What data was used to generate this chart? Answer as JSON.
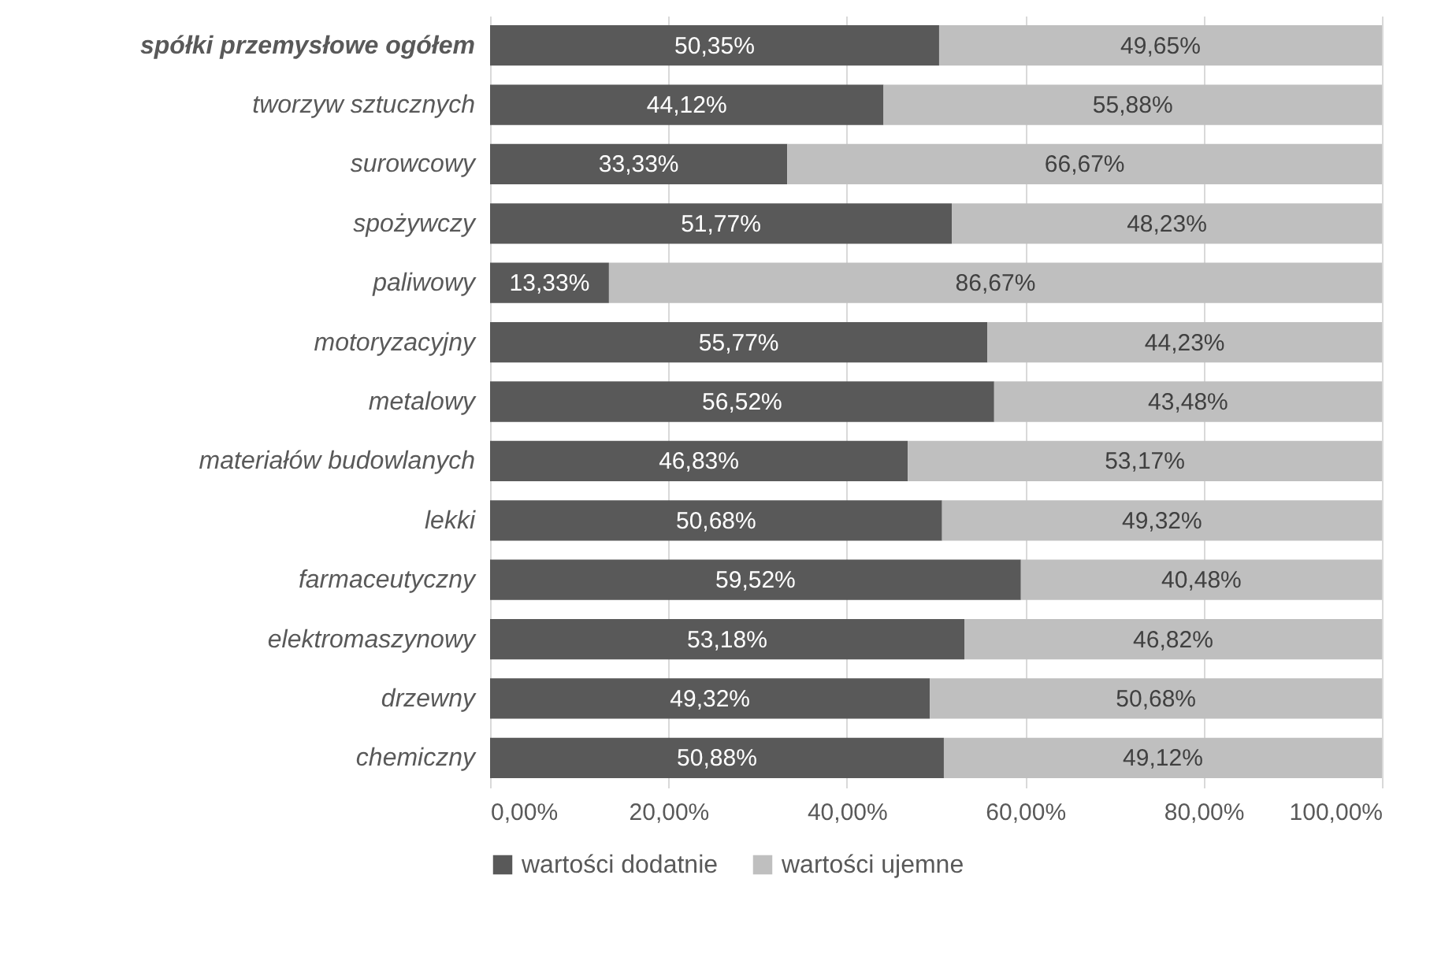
{
  "chart_data": {
    "type": "bar",
    "orientation": "horizontal",
    "stacked": true,
    "categories": [
      "spółki przemysłowe ogółem",
      "tworzyw sztucznych",
      "surowcowy",
      "spożywczy",
      "paliwowy",
      "motoryzacyjny",
      "metalowy",
      "materiałów budowlanych",
      "lekki",
      "farmaceutyczny",
      "elektromaszynowy",
      "drzewny",
      "chemiczny"
    ],
    "series": [
      {
        "name": "wartości dodatnie",
        "color": "#595959",
        "values": [
          50.35,
          44.12,
          33.33,
          51.77,
          13.33,
          55.77,
          56.52,
          46.83,
          50.68,
          59.52,
          53.18,
          49.32,
          50.88
        ],
        "value_labels": [
          "50,35%",
          "44,12%",
          "33,33%",
          "51,77%",
          "13,33%",
          "55,77%",
          "56,52%",
          "46,83%",
          "50,68%",
          "59,52%",
          "53,18%",
          "49,32%",
          "50,88%"
        ]
      },
      {
        "name": "wartości ujemne",
        "color": "#bfbfbf",
        "values": [
          49.65,
          55.88,
          66.67,
          48.23,
          86.67,
          44.23,
          43.48,
          53.17,
          49.32,
          40.48,
          46.82,
          50.68,
          49.12
        ],
        "value_labels": [
          "49,65%",
          "55,88%",
          "66,67%",
          "48,23%",
          "86,67%",
          "44,23%",
          "43,48%",
          "53,17%",
          "49,32%",
          "40,48%",
          "46,82%",
          "50,68%",
          "49,12%"
        ]
      }
    ],
    "xlim": [
      0,
      100
    ],
    "xticks": [
      {
        "value": 0,
        "label": "0,00%"
      },
      {
        "value": 20,
        "label": "20,00%"
      },
      {
        "value": 40,
        "label": "40,00%"
      },
      {
        "value": 60,
        "label": "60,00%"
      },
      {
        "value": 80,
        "label": "80,00%"
      },
      {
        "value": 100,
        "label": "100,00%"
      }
    ],
    "grid": "x",
    "legend": "bottom"
  }
}
